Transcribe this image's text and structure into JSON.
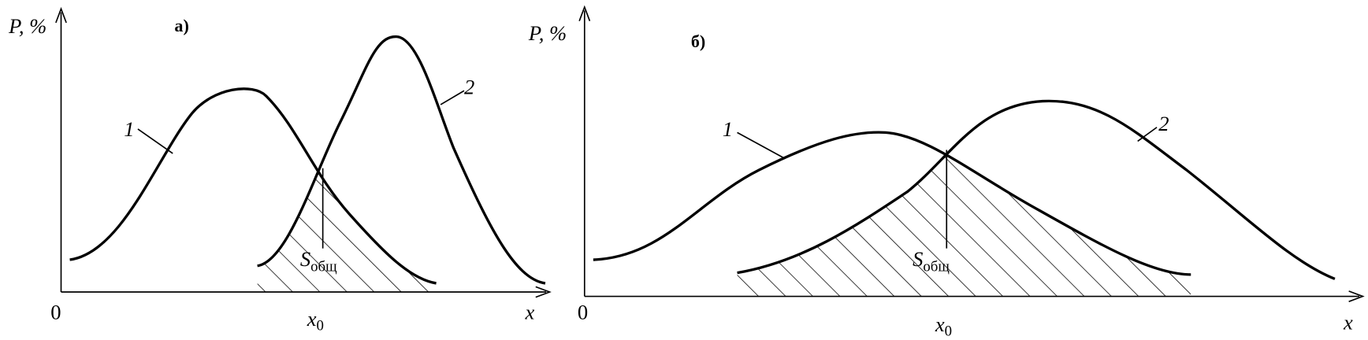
{
  "panels": [
    {
      "label": "а)",
      "y_axis_label": "P, %",
      "x_axis_label": "x",
      "origin": "0",
      "x0": {
        "main": "x",
        "sub": "0"
      },
      "area": {
        "main": "S",
        "sub": "общ"
      },
      "curves": [
        "1",
        "2"
      ]
    },
    {
      "label": "б)",
      "y_axis_label": "P, %",
      "x_axis_label": "x",
      "origin": "0",
      "x0": {
        "main": "x",
        "sub": "0"
      },
      "area": {
        "main": "S",
        "sub": "общ"
      },
      "curves": [
        "1",
        "2"
      ]
    }
  ]
}
